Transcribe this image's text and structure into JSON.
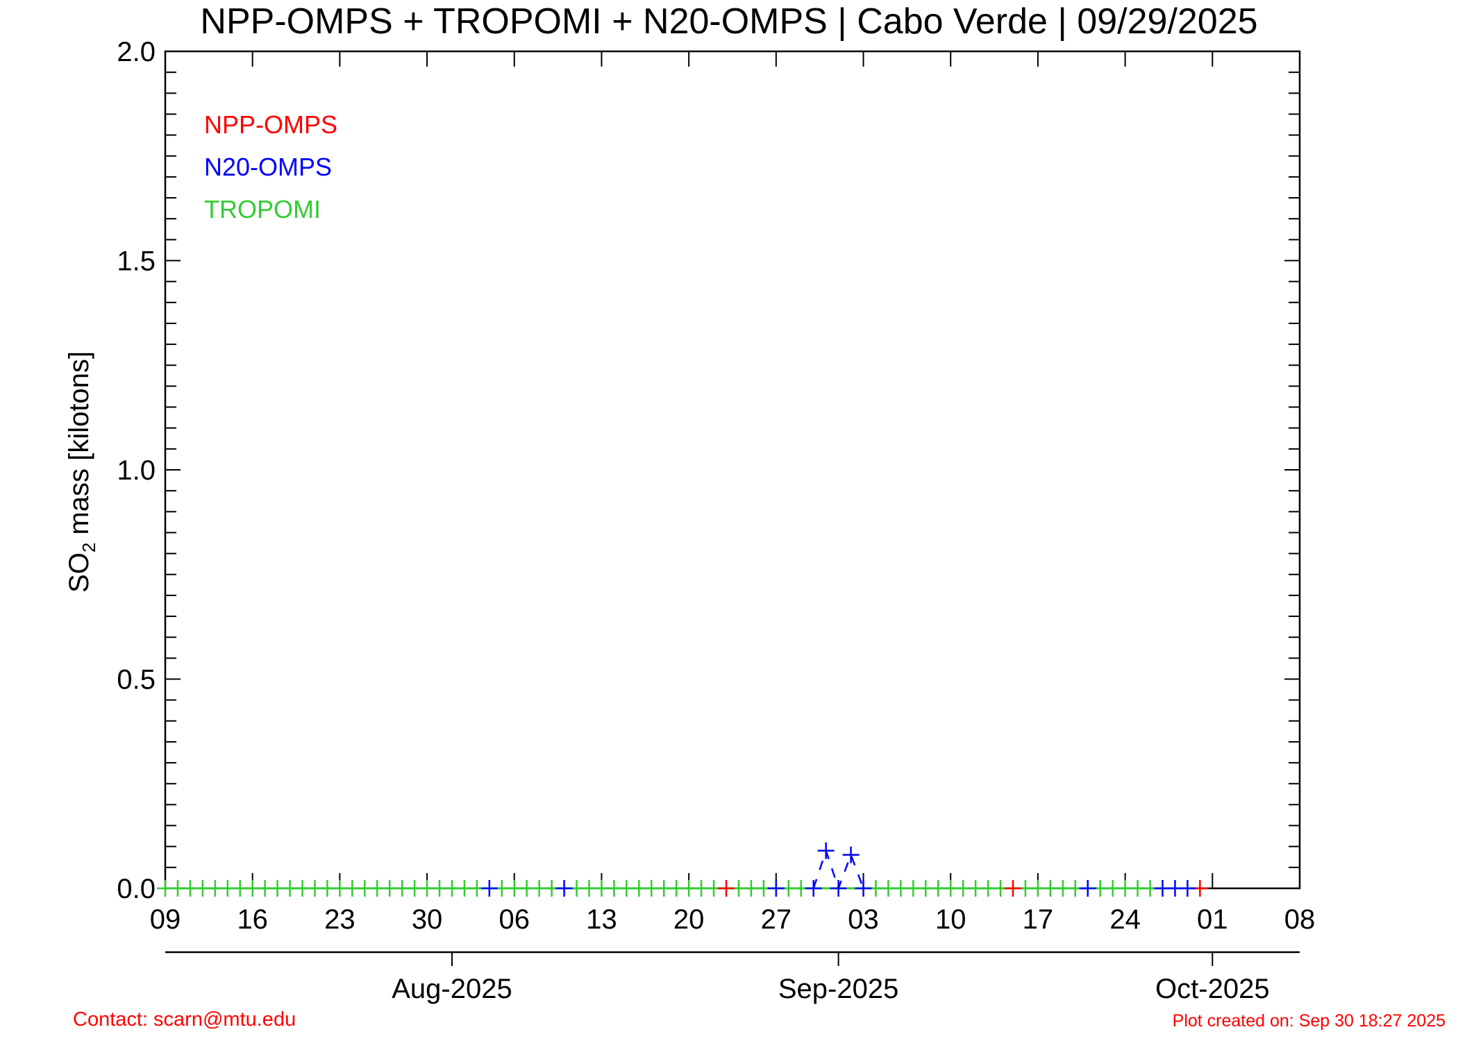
{
  "chart_data": {
    "type": "scatter",
    "title": "NPP-OMPS + TROPOMI + N20-OMPS | Cabo Verde | 09/29/2025",
    "ylabel_main": "SO",
    "ylabel_sub": "2",
    "ylabel_rest": " mass [kilotons]",
    "xlim": [
      "2025-07-09",
      "2025-10-08"
    ],
    "ylim": [
      0.0,
      2.0
    ],
    "y_ticks": [
      "0.0",
      "0.5",
      "1.0",
      "1.5",
      "2.0"
    ],
    "x_day_ticks": [
      {
        "date": "2025-07-09",
        "label": "09"
      },
      {
        "date": "2025-07-16",
        "label": "16"
      },
      {
        "date": "2025-07-23",
        "label": "23"
      },
      {
        "date": "2025-07-30",
        "label": "30"
      },
      {
        "date": "2025-08-06",
        "label": "06"
      },
      {
        "date": "2025-08-13",
        "label": "13"
      },
      {
        "date": "2025-08-20",
        "label": "20"
      },
      {
        "date": "2025-08-27",
        "label": "27"
      },
      {
        "date": "2025-09-03",
        "label": "03"
      },
      {
        "date": "2025-09-10",
        "label": "10"
      },
      {
        "date": "2025-09-17",
        "label": "17"
      },
      {
        "date": "2025-09-24",
        "label": "24"
      },
      {
        "date": "2025-10-01",
        "label": "01"
      },
      {
        "date": "2025-10-08",
        "label": "08"
      }
    ],
    "x_month_ticks": [
      {
        "date": "2025-08-01",
        "label": "Aug-2025"
      },
      {
        "date": "2025-09-01",
        "label": "Sep-2025"
      },
      {
        "date": "2025-10-01",
        "label": "Oct-2025"
      }
    ],
    "grid": false,
    "legend_position": "top-left",
    "series": [
      {
        "name": "NPP-OMPS",
        "color": "#ff0000",
        "points": [
          {
            "x": "2025-08-23",
            "y": 0.0
          },
          {
            "x": "2025-09-15",
            "y": 0.0
          },
          {
            "x": "2025-09-30",
            "y": 0.0
          }
        ]
      },
      {
        "name": "N20-OMPS",
        "color": "#0000ff",
        "points": [
          {
            "x": "2025-08-04",
            "y": 0.0
          },
          {
            "x": "2025-08-10",
            "y": 0.0
          },
          {
            "x": "2025-08-27",
            "y": 0.0
          },
          {
            "x": "2025-08-30",
            "y": 0.0
          },
          {
            "x": "2025-08-31",
            "y": 0.09
          },
          {
            "x": "2025-09-01",
            "y": 0.0
          },
          {
            "x": "2025-09-02",
            "y": 0.08
          },
          {
            "x": "2025-09-03",
            "y": 0.0
          },
          {
            "x": "2025-09-21",
            "y": 0.0
          },
          {
            "x": "2025-09-27",
            "y": 0.0
          },
          {
            "x": "2025-09-28",
            "y": 0.0
          },
          {
            "x": "2025-09-29",
            "y": 0.0
          }
        ]
      },
      {
        "name": "TROPOMI",
        "color": "#33cc33",
        "points": [
          {
            "x": "2025-07-09",
            "y": 0.0
          },
          {
            "x": "2025-07-10",
            "y": 0.0
          },
          {
            "x": "2025-07-11",
            "y": 0.0
          },
          {
            "x": "2025-07-12",
            "y": 0.0
          },
          {
            "x": "2025-07-13",
            "y": 0.0
          },
          {
            "x": "2025-07-14",
            "y": 0.0
          },
          {
            "x": "2025-07-15",
            "y": 0.0
          },
          {
            "x": "2025-07-16",
            "y": 0.0
          },
          {
            "x": "2025-07-17",
            "y": 0.0
          },
          {
            "x": "2025-07-18",
            "y": 0.0
          },
          {
            "x": "2025-07-19",
            "y": 0.0
          },
          {
            "x": "2025-07-20",
            "y": 0.0
          },
          {
            "x": "2025-07-21",
            "y": 0.0
          },
          {
            "x": "2025-07-22",
            "y": 0.0
          },
          {
            "x": "2025-07-23",
            "y": 0.0
          },
          {
            "x": "2025-07-24",
            "y": 0.0
          },
          {
            "x": "2025-07-25",
            "y": 0.0
          },
          {
            "x": "2025-07-26",
            "y": 0.0
          },
          {
            "x": "2025-07-27",
            "y": 0.0
          },
          {
            "x": "2025-07-28",
            "y": 0.0
          },
          {
            "x": "2025-07-29",
            "y": 0.0
          },
          {
            "x": "2025-07-30",
            "y": 0.0
          },
          {
            "x": "2025-07-31",
            "y": 0.0
          },
          {
            "x": "2025-08-01",
            "y": 0.0
          },
          {
            "x": "2025-08-02",
            "y": 0.0
          },
          {
            "x": "2025-08-03",
            "y": 0.0
          },
          {
            "x": "2025-08-05",
            "y": 0.0
          },
          {
            "x": "2025-08-06",
            "y": 0.0
          },
          {
            "x": "2025-08-07",
            "y": 0.0
          },
          {
            "x": "2025-08-08",
            "y": 0.0
          },
          {
            "x": "2025-08-09",
            "y": 0.0
          },
          {
            "x": "2025-08-11",
            "y": 0.0
          },
          {
            "x": "2025-08-12",
            "y": 0.0
          },
          {
            "x": "2025-08-13",
            "y": 0.0
          },
          {
            "x": "2025-08-14",
            "y": 0.0
          },
          {
            "x": "2025-08-15",
            "y": 0.0
          },
          {
            "x": "2025-08-16",
            "y": 0.0
          },
          {
            "x": "2025-08-17",
            "y": 0.0
          },
          {
            "x": "2025-08-18",
            "y": 0.0
          },
          {
            "x": "2025-08-19",
            "y": 0.0
          },
          {
            "x": "2025-08-20",
            "y": 0.0
          },
          {
            "x": "2025-08-21",
            "y": 0.0
          },
          {
            "x": "2025-08-22",
            "y": 0.0
          },
          {
            "x": "2025-08-24",
            "y": 0.0
          },
          {
            "x": "2025-08-25",
            "y": 0.0
          },
          {
            "x": "2025-08-26",
            "y": 0.0
          },
          {
            "x": "2025-08-28",
            "y": 0.0
          },
          {
            "x": "2025-08-29",
            "y": 0.0
          },
          {
            "x": "2025-09-04",
            "y": 0.0
          },
          {
            "x": "2025-09-05",
            "y": 0.0
          },
          {
            "x": "2025-09-06",
            "y": 0.0
          },
          {
            "x": "2025-09-07",
            "y": 0.0
          },
          {
            "x": "2025-09-08",
            "y": 0.0
          },
          {
            "x": "2025-09-09",
            "y": 0.0
          },
          {
            "x": "2025-09-10",
            "y": 0.0
          },
          {
            "x": "2025-09-11",
            "y": 0.0
          },
          {
            "x": "2025-09-12",
            "y": 0.0
          },
          {
            "x": "2025-09-13",
            "y": 0.0
          },
          {
            "x": "2025-09-14",
            "y": 0.0
          },
          {
            "x": "2025-09-16",
            "y": 0.0
          },
          {
            "x": "2025-09-17",
            "y": 0.0
          },
          {
            "x": "2025-09-18",
            "y": 0.0
          },
          {
            "x": "2025-09-19",
            "y": 0.0
          },
          {
            "x": "2025-09-20",
            "y": 0.0
          },
          {
            "x": "2025-09-22",
            "y": 0.0
          },
          {
            "x": "2025-09-23",
            "y": 0.0
          },
          {
            "x": "2025-09-24",
            "y": 0.0
          },
          {
            "x": "2025-09-25",
            "y": 0.0
          },
          {
            "x": "2025-09-26",
            "y": 0.0
          }
        ]
      }
    ]
  },
  "footer": {
    "contact": "Contact: scarn@mtu.edu",
    "created": "Plot created on: Sep 30 18:27 2025",
    "color": "#ff0000"
  }
}
